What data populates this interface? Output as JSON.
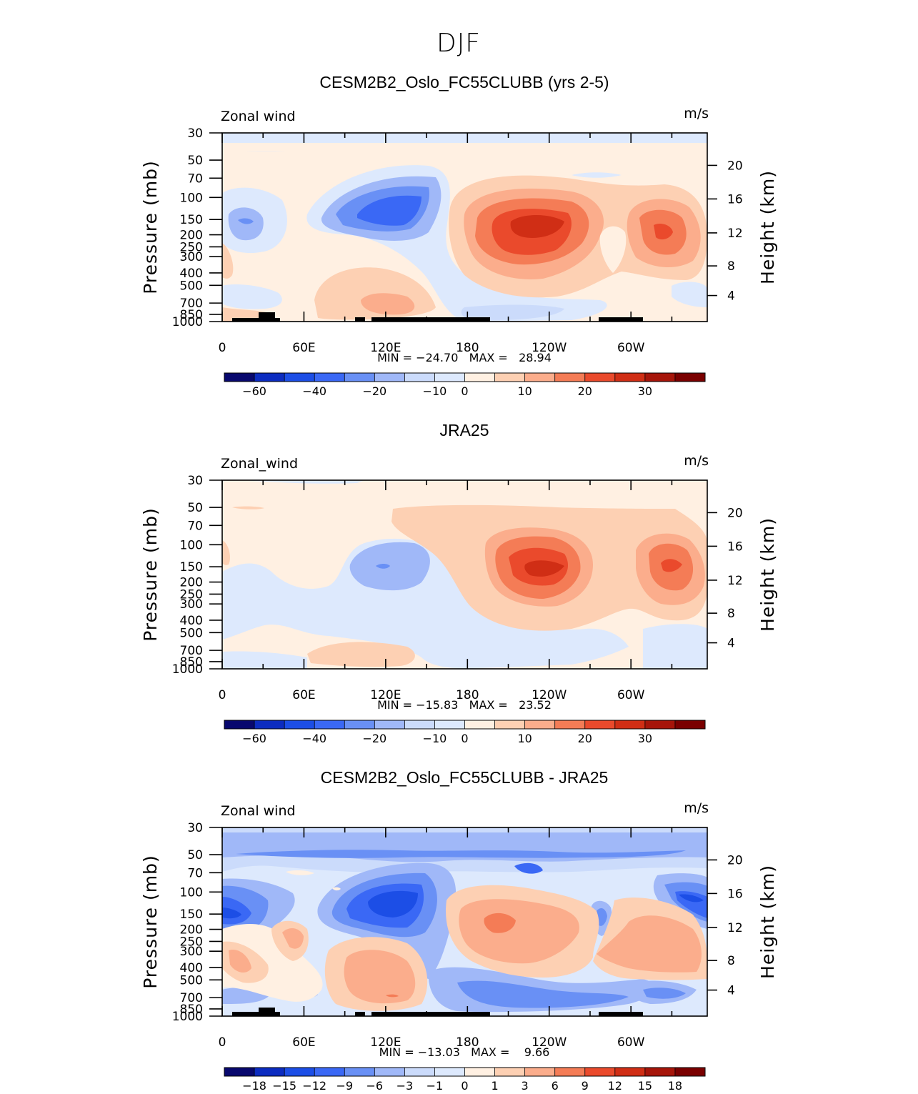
{
  "page": {
    "season": "DJF"
  },
  "chart_data": [
    {
      "type": "heatmap",
      "title": "CESM2B2_Oslo_FC55CLUBB (yrs 2-5)",
      "variable": "Zonal wind",
      "units": "m/s",
      "xlabel": "",
      "ylabel": "Pressure (mb)",
      "ylabel_right": "Height (km)",
      "x_ticks": [
        "0",
        "60E",
        "120E",
        "180",
        "120W",
        "60W"
      ],
      "y_ticks": [
        "30",
        "50",
        "70",
        "100",
        "150",
        "200",
        "250",
        "300",
        "400",
        "500",
        "700",
        "850",
        "1000"
      ],
      "y_right_ticks": [
        "20",
        "16",
        "12",
        "8",
        "4"
      ],
      "stats": "MIN = −24.70   MAX =   28.94",
      "min": -24.7,
      "max": 28.94,
      "colorbar": {
        "labels": [
          "−60",
          "−40",
          "−20",
          "−10",
          "0",
          "10",
          "20",
          "30"
        ],
        "label_positions": [
          1,
          3,
          5,
          7,
          8,
          10,
          12,
          14
        ],
        "colors": [
          "#08086e",
          "#0c2cc0",
          "#1c4ee6",
          "#3a68f5",
          "#6990f5",
          "#a0b8f8",
          "#cbdbfb",
          "#dde9fd",
          "#fff0e2",
          "#fdd0b3",
          "#fbad8c",
          "#f47c56",
          "#ea4a2c",
          "#d02e15",
          "#a6150a",
          "#7a0000"
        ]
      }
    },
    {
      "type": "heatmap",
      "title": "JRA25",
      "variable": "Zonal_wind",
      "units": "m/s",
      "xlabel": "",
      "ylabel": "Pressure (mb)",
      "ylabel_right": "Height (km)",
      "x_ticks": [
        "0",
        "60E",
        "120E",
        "180",
        "120W",
        "60W"
      ],
      "y_ticks": [
        "30",
        "50",
        "70",
        "100",
        "150",
        "200",
        "250",
        "300",
        "400",
        "500",
        "700",
        "850",
        "1000"
      ],
      "y_right_ticks": [
        "20",
        "16",
        "12",
        "8",
        "4"
      ],
      "stats": "MIN = −15.83   MAX =   23.52",
      "min": -15.83,
      "max": 23.52,
      "colorbar": {
        "labels": [
          "−60",
          "−40",
          "−20",
          "−10",
          "0",
          "10",
          "20",
          "30"
        ],
        "label_positions": [
          1,
          3,
          5,
          7,
          8,
          10,
          12,
          14
        ],
        "colors": [
          "#08086e",
          "#0c2cc0",
          "#1c4ee6",
          "#3a68f5",
          "#6990f5",
          "#a0b8f8",
          "#cbdbfb",
          "#dde9fd",
          "#fff0e2",
          "#fdd0b3",
          "#fbad8c",
          "#f47c56",
          "#ea4a2c",
          "#d02e15",
          "#a6150a",
          "#7a0000"
        ]
      }
    },
    {
      "type": "heatmap",
      "title": "CESM2B2_Oslo_FC55CLUBB - JRA25",
      "variable": "Zonal wind",
      "units": "m/s",
      "xlabel": "",
      "ylabel": "Pressure (mb)",
      "ylabel_right": "Height (km)",
      "x_ticks": [
        "0",
        "60E",
        "120E",
        "180",
        "120W",
        "60W"
      ],
      "y_ticks": [
        "30",
        "50",
        "70",
        "100",
        "150",
        "200",
        "250",
        "300",
        "400",
        "500",
        "700",
        "850",
        "1000"
      ],
      "y_right_ticks": [
        "20",
        "16",
        "12",
        "8",
        "4"
      ],
      "stats": "MIN = −13.03   MAX =    9.66",
      "min": -13.03,
      "max": 9.66,
      "colorbar": {
        "labels": [
          "−18",
          "−15",
          "−12",
          "−9",
          "−6",
          "−3",
          "−1",
          "0",
          "1",
          "3",
          "6",
          "9",
          "12",
          "15",
          "18"
        ],
        "label_positions": [
          1,
          2,
          3,
          4,
          5,
          6,
          7,
          8,
          9,
          10,
          11,
          12,
          13,
          14,
          15
        ],
        "colors": [
          "#08086e",
          "#0c2cc0",
          "#1c4ee6",
          "#3a68f5",
          "#6990f5",
          "#a0b8f8",
          "#cbdbfb",
          "#dde9fd",
          "#fff0e2",
          "#fdd0b3",
          "#fbad8c",
          "#f47c56",
          "#ea4a2c",
          "#d02e15",
          "#a6150a",
          "#7a0000"
        ]
      }
    }
  ]
}
